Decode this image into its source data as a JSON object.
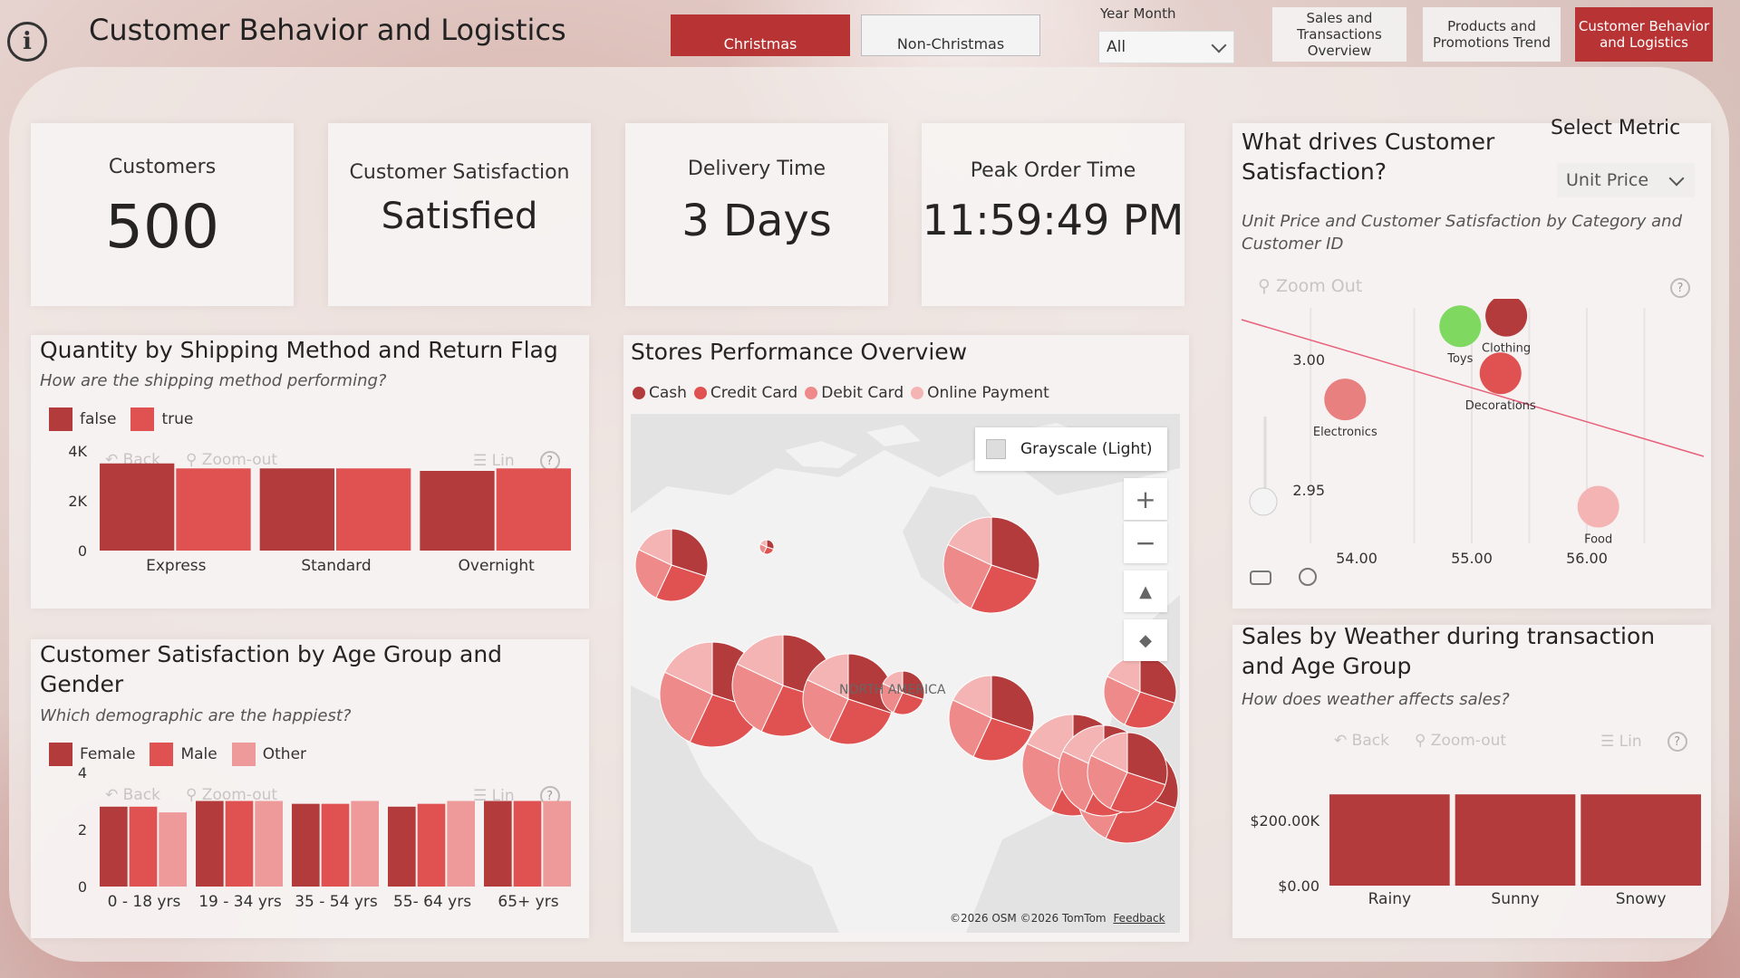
{
  "header": {
    "title": "Customer Behavior and Logistics",
    "tabs": [
      {
        "label": "Christmas",
        "active": true
      },
      {
        "label": "Non-Christmas",
        "active": false
      }
    ],
    "year_month": {
      "label": "Year Month",
      "value": "All"
    },
    "nav": [
      {
        "label": "Sales and Transactions Overview",
        "active": false
      },
      {
        "label": "Products and Promotions Trend",
        "active": false
      },
      {
        "label": "Customer Behavior and Logistics",
        "active": true
      }
    ]
  },
  "kpis": [
    {
      "label": "Customers",
      "value": "500"
    },
    {
      "label": "Customer Satisfaction",
      "value": "Satisfied"
    },
    {
      "label": "Delivery Time",
      "value": "3 Days"
    },
    {
      "label": "Peak Order Time",
      "value": "11:59:49 PM"
    }
  ],
  "toolbar": {
    "back": "Back",
    "zoom_out": "Zoom-out",
    "lin": "Lin",
    "zoom_out_scatter": "Zoom Out"
  },
  "shipping": {
    "title": "Quantity by Shipping Method and Return Flag",
    "subtitle": "How are the shipping method performing?",
    "legend": [
      "false",
      "true"
    ],
    "chart_data": {
      "type": "bar",
      "categories": [
        "Express",
        "Standard",
        "Overnight"
      ],
      "series": [
        {
          "name": "false",
          "values": [
            3500,
            3300,
            3200
          ]
        },
        {
          "name": "true",
          "values": [
            3300,
            3300,
            3300
          ]
        }
      ],
      "y_ticks": [
        "4K",
        "2K",
        "0"
      ],
      "ylim": [
        0,
        4000
      ],
      "colors": [
        "#b33b3b",
        "#e05252"
      ]
    }
  },
  "age": {
    "title": "Customer Satisfaction by Age Group and Gender",
    "subtitle": "Which demographic are the happiest?",
    "legend": [
      "Female",
      "Male",
      "Other"
    ],
    "chart_data": {
      "type": "bar",
      "categories": [
        "0 - 18 yrs",
        "19 - 34 yrs",
        "35 - 54 yrs",
        "55- 64 yrs",
        "65+ yrs"
      ],
      "series": [
        {
          "name": "Female",
          "values": [
            2.8,
            3.0,
            2.9,
            2.8,
            3.0
          ]
        },
        {
          "name": "Male",
          "values": [
            2.8,
            3.0,
            2.9,
            2.9,
            3.0
          ]
        },
        {
          "name": "Other",
          "values": [
            2.6,
            3.0,
            3.0,
            3.0,
            3.0
          ]
        }
      ],
      "y_ticks": [
        "4",
        "2",
        "0"
      ],
      "ylim": [
        0,
        4
      ],
      "colors": [
        "#b33b3b",
        "#e05252",
        "#ee9a9a"
      ]
    }
  },
  "stores": {
    "title": "Stores Performance Overview",
    "legend": [
      {
        "label": "Cash",
        "color": "#b33b3b"
      },
      {
        "label": "Credit Card",
        "color": "#e05252"
      },
      {
        "label": "Debit Card",
        "color": "#ee8a8a"
      },
      {
        "label": "Online Payment",
        "color": "#f4b4b4"
      }
    ],
    "map_style": "Grayscale (Light)",
    "region_label": "NORTH AMERICA",
    "credits": {
      "osm": "©2026 OSM",
      "tomtom": "©2026 TomTom",
      "feedback": "Feedback"
    }
  },
  "satisfaction": {
    "title": "What drives Customer Satisfaction?",
    "select_metric_label": "Select Metric",
    "select_metric_value": "Unit Price",
    "subtitle": "Unit Price and Customer Satisfaction by Category and Customer ID",
    "chart_data": {
      "type": "scatter",
      "x_ticks": [
        "54.00",
        "55.00",
        "56.00"
      ],
      "y_ticks": [
        "3.00",
        "2.95"
      ],
      "xlim": [
        53.0,
        57.0
      ],
      "ylim": [
        2.93,
        3.02
      ],
      "points": [
        {
          "label": "Toys",
          "x": 54.9,
          "y": 3.013,
          "color": "#7fd860"
        },
        {
          "label": "Clothing",
          "x": 55.3,
          "y": 3.017,
          "color": "#b33b3b"
        },
        {
          "label": "Decorations",
          "x": 55.25,
          "y": 2.995,
          "color": "#e05252"
        },
        {
          "label": "Electronics",
          "x": 53.9,
          "y": 2.985,
          "color": "#e88080"
        },
        {
          "label": "Food",
          "x": 56.1,
          "y": 2.944,
          "color": "#f4b4b4"
        }
      ]
    }
  },
  "weather": {
    "title": "Sales by Weather during transaction and Age Group",
    "subtitle": "How does weather affects sales?",
    "chart_data": {
      "type": "bar",
      "categories": [
        "Rainy",
        "Sunny",
        "Snowy"
      ],
      "values": [
        280000,
        280000,
        280000
      ],
      "y_ticks": [
        "$200.00K",
        "$0.00"
      ],
      "ylim": [
        0,
        300000
      ],
      "color": "#b33b3b"
    }
  }
}
